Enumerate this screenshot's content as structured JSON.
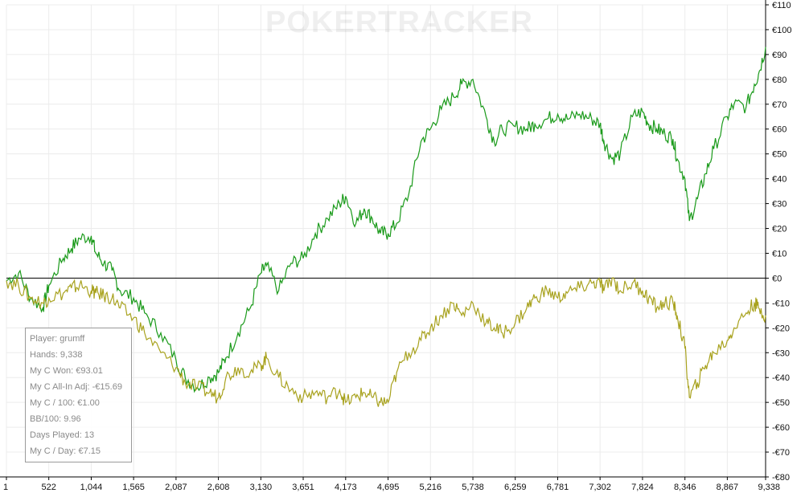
{
  "watermark": "POKERTRACKER",
  "stats": [
    "Player: grumff",
    "Hands: 9,338",
    "My C Won: €93.01",
    "My C All-In Adj: -€15.69",
    "My C / 100: €1.00",
    "BB/100: 9.96",
    "Days Played: 13",
    "My C / Day: €7.15"
  ],
  "chart_data": {
    "type": "line",
    "title": "",
    "xlabel": "",
    "ylabel": "",
    "xlim": [
      1,
      9338
    ],
    "ylim": [
      -80,
      110
    ],
    "x_ticks": [
      1,
      522,
      1044,
      1565,
      2087,
      2608,
      3130,
      3651,
      4173,
      4695,
      5216,
      5738,
      6259,
      6781,
      7302,
      7824,
      8346,
      8867,
      9338
    ],
    "x_tick_labels": [
      "1",
      "522",
      "1,044",
      "1,565",
      "2,087",
      "2,608",
      "3,130",
      "3,651",
      "4,173",
      "4,695",
      "5,216",
      "5,738",
      "6,259",
      "6,781",
      "7,302",
      "7,824",
      "8,346",
      "8,867",
      "9,338"
    ],
    "y_ticks": [
      110,
      100,
      90,
      80,
      70,
      60,
      50,
      40,
      30,
      20,
      10,
      0,
      -10,
      -20,
      -30,
      -40,
      -50,
      -60,
      -70,
      -80
    ],
    "y_tick_labels": [
      "€110",
      "€100",
      "€90",
      "€80",
      "€70",
      "€60",
      "€50",
      "€40",
      "€30",
      "€20",
      "€10",
      "€0",
      "-€10",
      "-€20",
      "-€30",
      "-€40",
      "-€50",
      "-€60",
      "-€70",
      "-€80"
    ],
    "grid": true,
    "zero_line": true,
    "colors": {
      "series_1": "#1a9a1a",
      "series_2": "#a8a21e",
      "zero": "#000000",
      "grid": "#ececec"
    },
    "series": [
      {
        "x": [
          1,
          150,
          300,
          450,
          522,
          700,
          800,
          900,
          1044,
          1100,
          1200,
          1300,
          1400,
          1565,
          1700,
          1900,
          2087,
          2200,
          2350,
          2500,
          2608,
          2700,
          2850,
          3000,
          3130,
          3200,
          3350,
          3500,
          3651,
          3800,
          3950,
          4100,
          4173,
          4300,
          4400,
          4500,
          4600,
          4695,
          4800,
          4950,
          5100,
          5216,
          5350,
          5500,
          5600,
          5738,
          5900,
          6000,
          6100,
          6259,
          6400,
          6500,
          6650,
          6781,
          6900,
          7050,
          7200,
          7302,
          7350,
          7450,
          7550,
          7700,
          7824,
          7900,
          8000,
          8100,
          8200,
          8250,
          8346,
          8400,
          8500,
          8600,
          8700,
          8867,
          8950,
          9100,
          9200,
          9250,
          9338
        ],
        "values": [
          -1,
          2,
          -8,
          -12,
          -3,
          8,
          12,
          16,
          17,
          10,
          6,
          3,
          -5,
          -8,
          -14,
          -22,
          -33,
          -40,
          -44,
          -40,
          -38,
          -32,
          -22,
          -12,
          2,
          5,
          -5,
          6,
          8,
          18,
          24,
          30,
          33,
          22,
          28,
          24,
          18,
          18,
          22,
          34,
          55,
          60,
          68,
          73,
          78,
          80,
          65,
          55,
          60,
          61,
          60,
          62,
          64,
          66,
          64,
          66,
          64,
          62,
          55,
          48,
          50,
          65,
          67,
          62,
          60,
          58,
          56,
          48,
          40,
          23,
          32,
          42,
          52,
          65,
          70,
          69,
          78,
          82,
          93
        ]
      },
      {
        "x": [
          1,
          150,
          300,
          450,
          522,
          700,
          800,
          900,
          1044,
          1100,
          1200,
          1300,
          1400,
          1565,
          1700,
          1900,
          2087,
          2200,
          2350,
          2500,
          2608,
          2700,
          2850,
          3000,
          3130,
          3200,
          3350,
          3500,
          3651,
          3800,
          3950,
          4100,
          4173,
          4300,
          4400,
          4500,
          4600,
          4695,
          4800,
          4950,
          5100,
          5216,
          5350,
          5500,
          5600,
          5738,
          5900,
          6000,
          6100,
          6259,
          6400,
          6500,
          6650,
          6781,
          6900,
          7050,
          7200,
          7302,
          7350,
          7450,
          7550,
          7700,
          7824,
          7900,
          8000,
          8100,
          8200,
          8250,
          8346,
          8400,
          8500,
          8600,
          8700,
          8867,
          8950,
          9100,
          9200,
          9250,
          9338
        ],
        "values": [
          -1,
          -3,
          -8,
          -10,
          -8,
          -6,
          -4,
          -3,
          -5,
          -6,
          -7,
          -8,
          -12,
          -16,
          -22,
          -30,
          -36,
          -42,
          -44,
          -46,
          -48,
          -40,
          -36,
          -38,
          -35,
          -32,
          -40,
          -45,
          -48,
          -46,
          -48,
          -45,
          -50,
          -48,
          -46,
          -48,
          -50,
          -50,
          -38,
          -30,
          -25,
          -20,
          -15,
          -10,
          -15,
          -10,
          -18,
          -20,
          -22,
          -18,
          -12,
          -8,
          -5,
          -8,
          -6,
          -4,
          -2,
          -2,
          -5,
          0,
          -5,
          -2,
          -5,
          -8,
          -12,
          -10,
          -10,
          -15,
          -28,
          -48,
          -42,
          -35,
          -30,
          -25,
          -20,
          -14,
          -10,
          -12,
          -15
        ]
      }
    ]
  }
}
